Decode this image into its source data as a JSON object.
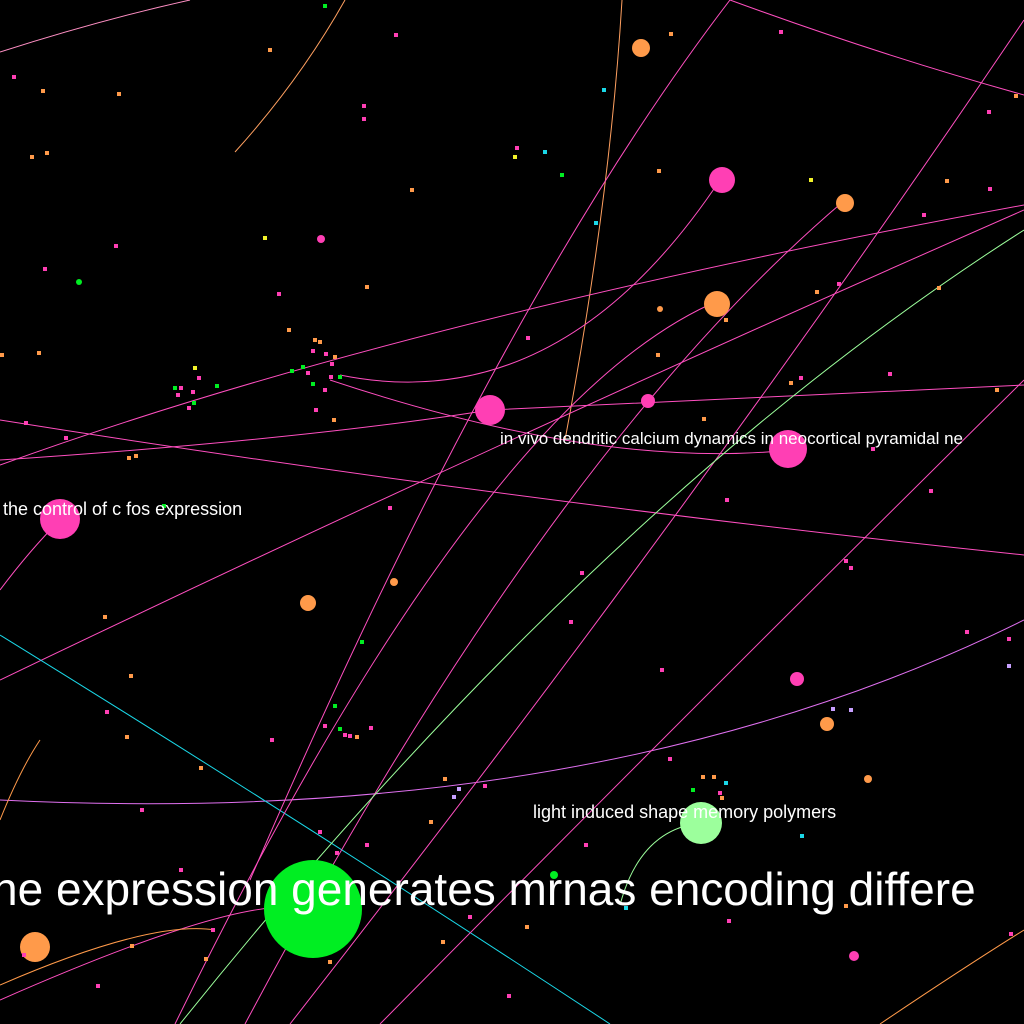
{
  "graph": {
    "background": "#000000",
    "colors": {
      "pink": "#ff3fb4",
      "orange": "#ff9a4a",
      "green": "#00ee22",
      "light_green": "#9cff9c",
      "cyan": "#1ad8e8",
      "yellow": "#f2f22a",
      "lavender": "#c8a0ff",
      "violet": "#e070f0",
      "label": "#ffffff"
    },
    "labels": {
      "neocortical": "in vivo dendritic calcium dynamics in neocortical pyramidal ne",
      "cfos": "the control of c fos expression",
      "polymers": "light induced shape memory polymers",
      "mrna": "ne expression generates mrnas encoding differe"
    }
  }
}
